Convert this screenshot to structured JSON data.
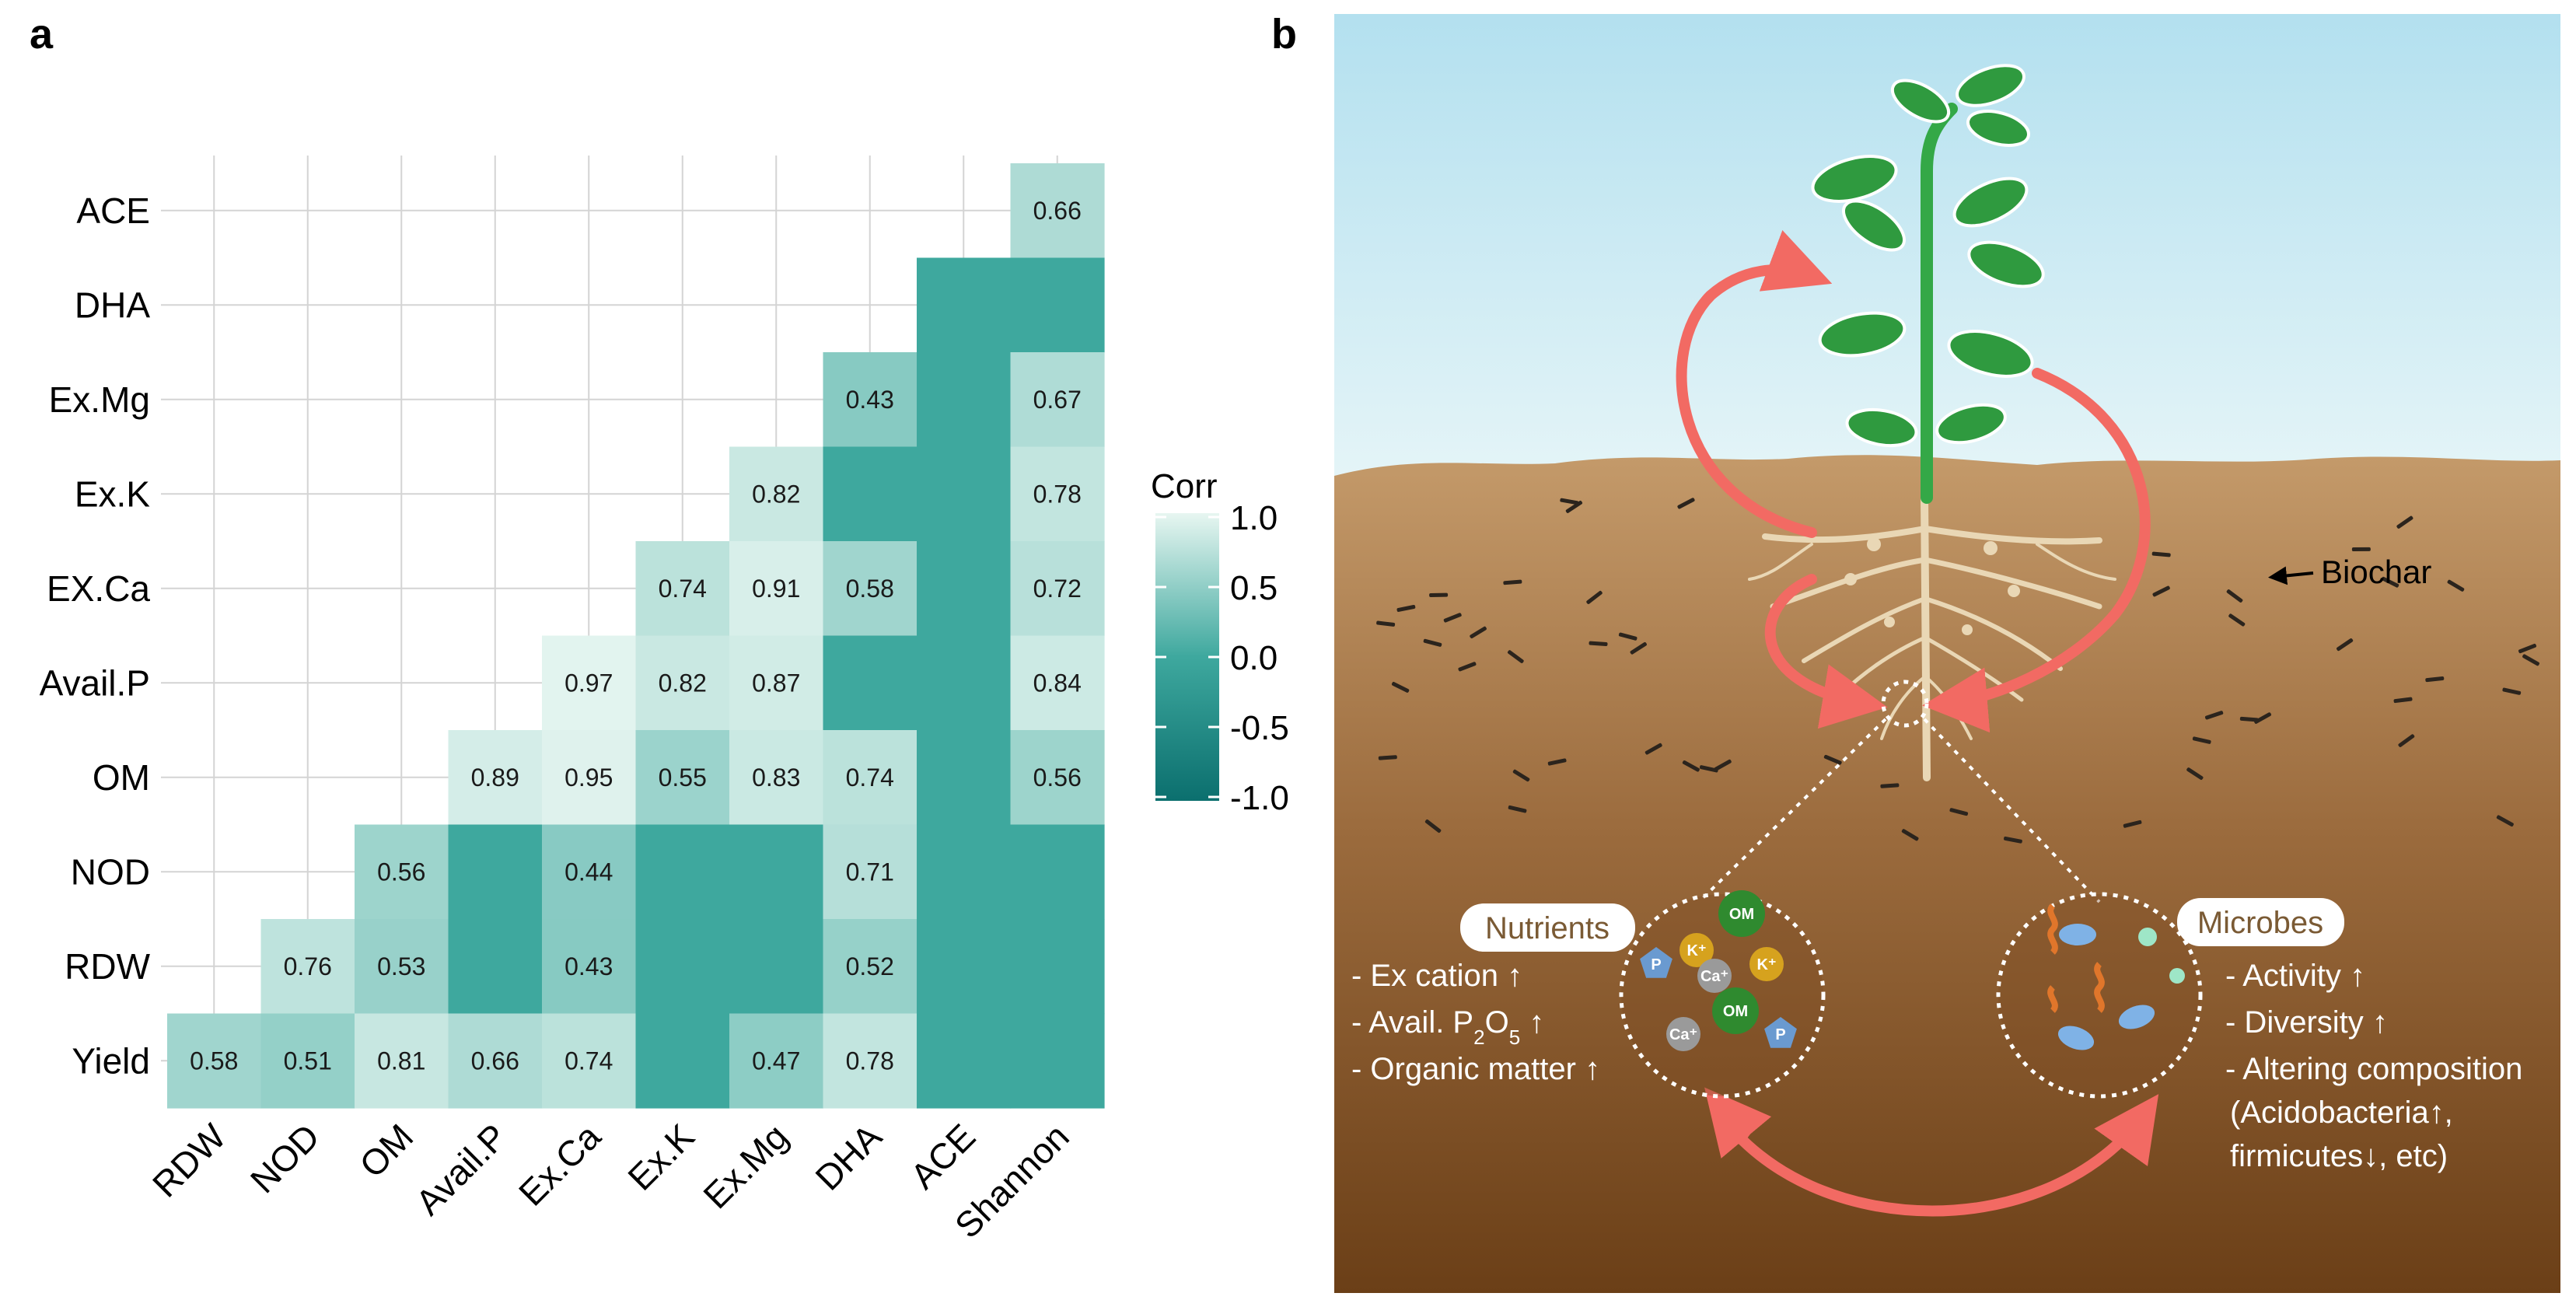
{
  "panels": {
    "a": "a",
    "b": "b"
  },
  "chart_data": {
    "type": "heatmap",
    "title": "",
    "legend_title": "Corr",
    "color_range": [
      -1.0,
      1.0
    ],
    "legend_ticks": [
      "1.0",
      "0.5",
      "0.0",
      "-0.5",
      "-1.0"
    ],
    "legend_tick_values": [
      1.0,
      0.5,
      0.0,
      -0.5,
      -1.0
    ],
    "low_color": "#0b6f6e",
    "mid_color": "#3ea89e",
    "high_color": "#e7f6f1",
    "rows": [
      "ACE",
      "DHA",
      "Ex.Mg",
      "Ex.K",
      "EX.Ca",
      "Avail.P",
      "OM",
      "NOD",
      "RDW",
      "Yield"
    ],
    "columns": [
      "RDW",
      "NOD",
      "OM",
      "Avail.P",
      "Ex.Ca",
      "Ex.K",
      "Ex.Mg",
      "DHA",
      "ACE",
      "Shannon"
    ],
    "cells": [
      {
        "row": "ACE",
        "col": "Shannon",
        "value": 0.66,
        "label": "0.66"
      },
      {
        "row": "DHA",
        "col": "ACE",
        "value": 0,
        "label": ""
      },
      {
        "row": "DHA",
        "col": "Shannon",
        "value": 0,
        "label": ""
      },
      {
        "row": "Ex.Mg",
        "col": "DHA",
        "value": 0.43,
        "label": "0.43"
      },
      {
        "row": "Ex.Mg",
        "col": "ACE",
        "value": 0,
        "label": ""
      },
      {
        "row": "Ex.Mg",
        "col": "Shannon",
        "value": 0.67,
        "label": "0.67"
      },
      {
        "row": "Ex.K",
        "col": "Ex.Mg",
        "value": 0.82,
        "label": "0.82"
      },
      {
        "row": "Ex.K",
        "col": "DHA",
        "value": 0,
        "label": ""
      },
      {
        "row": "Ex.K",
        "col": "ACE",
        "value": 0,
        "label": ""
      },
      {
        "row": "Ex.K",
        "col": "Shannon",
        "value": 0.78,
        "label": "0.78"
      },
      {
        "row": "EX.Ca",
        "col": "Ex.K",
        "value": 0.74,
        "label": "0.74"
      },
      {
        "row": "EX.Ca",
        "col": "Ex.Mg",
        "value": 0.91,
        "label": "0.91"
      },
      {
        "row": "EX.Ca",
        "col": "DHA",
        "value": 0.58,
        "label": "0.58"
      },
      {
        "row": "EX.Ca",
        "col": "ACE",
        "value": 0,
        "label": ""
      },
      {
        "row": "EX.Ca",
        "col": "Shannon",
        "value": 0.72,
        "label": "0.72"
      },
      {
        "row": "Avail.P",
        "col": "Ex.Ca",
        "value": 0.97,
        "label": "0.97"
      },
      {
        "row": "Avail.P",
        "col": "Ex.K",
        "value": 0.82,
        "label": "0.82"
      },
      {
        "row": "Avail.P",
        "col": "Ex.Mg",
        "value": 0.87,
        "label": "0.87"
      },
      {
        "row": "Avail.P",
        "col": "DHA",
        "value": 0,
        "label": ""
      },
      {
        "row": "Avail.P",
        "col": "ACE",
        "value": 0,
        "label": ""
      },
      {
        "row": "Avail.P",
        "col": "Shannon",
        "value": 0.84,
        "label": "0.84"
      },
      {
        "row": "OM",
        "col": "Avail.P",
        "value": 0.89,
        "label": "0.89"
      },
      {
        "row": "OM",
        "col": "Ex.Ca",
        "value": 0.95,
        "label": "0.95"
      },
      {
        "row": "OM",
        "col": "Ex.K",
        "value": 0.55,
        "label": "0.55"
      },
      {
        "row": "OM",
        "col": "Ex.Mg",
        "value": 0.83,
        "label": "0.83"
      },
      {
        "row": "OM",
        "col": "DHA",
        "value": 0.74,
        "label": "0.74"
      },
      {
        "row": "OM",
        "col": "ACE",
        "value": 0,
        "label": ""
      },
      {
        "row": "OM",
        "col": "Shannon",
        "value": 0.56,
        "label": "0.56"
      },
      {
        "row": "NOD",
        "col": "OM",
        "value": 0.56,
        "label": "0.56"
      },
      {
        "row": "NOD",
        "col": "Avail.P",
        "value": 0,
        "label": ""
      },
      {
        "row": "NOD",
        "col": "Ex.Ca",
        "value": 0.44,
        "label": "0.44"
      },
      {
        "row": "NOD",
        "col": "Ex.K",
        "value": 0,
        "label": ""
      },
      {
        "row": "NOD",
        "col": "Ex.Mg",
        "value": 0,
        "label": ""
      },
      {
        "row": "NOD",
        "col": "DHA",
        "value": 0.71,
        "label": "0.71"
      },
      {
        "row": "NOD",
        "col": "ACE",
        "value": 0,
        "label": ""
      },
      {
        "row": "NOD",
        "col": "Shannon",
        "value": 0,
        "label": ""
      },
      {
        "row": "RDW",
        "col": "NOD",
        "value": 0.76,
        "label": "0.76"
      },
      {
        "row": "RDW",
        "col": "OM",
        "value": 0.53,
        "label": "0.53"
      },
      {
        "row": "RDW",
        "col": "Avail.P",
        "value": 0,
        "label": ""
      },
      {
        "row": "RDW",
        "col": "Ex.Ca",
        "value": 0.43,
        "label": "0.43"
      },
      {
        "row": "RDW",
        "col": "Ex.K",
        "value": 0,
        "label": ""
      },
      {
        "row": "RDW",
        "col": "Ex.Mg",
        "value": 0,
        "label": ""
      },
      {
        "row": "RDW",
        "col": "DHA",
        "value": 0.52,
        "label": "0.52"
      },
      {
        "row": "RDW",
        "col": "ACE",
        "value": 0,
        "label": ""
      },
      {
        "row": "RDW",
        "col": "Shannon",
        "value": 0,
        "label": ""
      },
      {
        "row": "Yield",
        "col": "RDW",
        "value": 0.58,
        "label": "0.58"
      },
      {
        "row": "Yield",
        "col": "NOD",
        "value": 0.51,
        "label": "0.51"
      },
      {
        "row": "Yield",
        "col": "OM",
        "value": 0.81,
        "label": "0.81"
      },
      {
        "row": "Yield",
        "col": "Avail.P",
        "value": 0.66,
        "label": "0.66"
      },
      {
        "row": "Yield",
        "col": "Ex.Ca",
        "value": 0.74,
        "label": "0.74"
      },
      {
        "row": "Yield",
        "col": "Ex.K",
        "value": 0,
        "label": ""
      },
      {
        "row": "Yield",
        "col": "Ex.Mg",
        "value": 0.47,
        "label": "0.47"
      },
      {
        "row": "Yield",
        "col": "DHA",
        "value": 0.78,
        "label": "0.78"
      },
      {
        "row": "Yield",
        "col": "ACE",
        "value": 0,
        "label": ""
      },
      {
        "row": "Yield",
        "col": "Shannon",
        "value": 0,
        "label": ""
      }
    ]
  },
  "diagram": {
    "biochar_label": "Biochar",
    "nutrients": {
      "title": "Nutrients",
      "lines": [
        "- Ex cation ↑",
        "- Organic matter ↑"
      ],
      "avail": {
        "prefix": "- Avail. P",
        "sub1": "2",
        "mid": "O",
        "sub2": "5",
        "suffix": " ↑"
      },
      "chips": [
        "OM",
        "K⁺",
        "P",
        "Ca⁺",
        "K⁺",
        "OM",
        "Ca⁺",
        "P"
      ]
    },
    "microbes": {
      "title": "Microbes",
      "lines": [
        "- Activity ↑",
        "- Diversity ↑",
        "- Altering composition",
        "(Acidobacteria↑,",
        "firmicutes↓, etc)"
      ]
    },
    "colors": {
      "sky_top": "#b3e0ef",
      "soil_top": "#c49a6a",
      "soil_bottom": "#6b3f17",
      "stem": "#34a847",
      "leaf": "#2f9a3f",
      "arrow": "#f26a63",
      "root": "#e9d7b5"
    }
  }
}
